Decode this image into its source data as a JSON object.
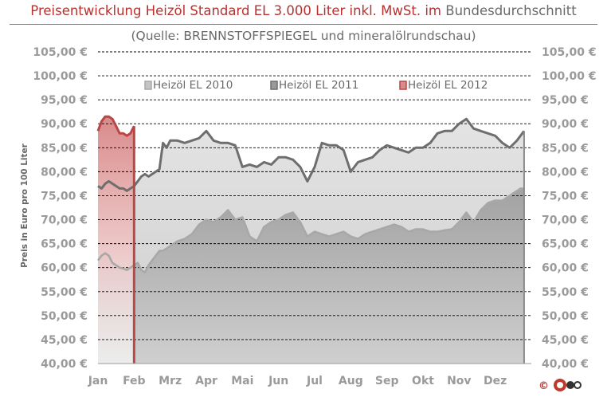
{
  "header": {
    "title_red_1": "Preisentwicklung Heizöl Standard EL 3.000 Liter inkl. MwSt. im",
    "title_gray": " Bundesdurchschnitt",
    "subtitle": "(Quelle: BRENNSTOFFSPIEGEL  und mineralölrundschau)",
    "copyright_symbol": "©"
  },
  "colors": {
    "title_red": "#b8312f",
    "series_2010": "#a8a8a8",
    "series_2011": "#6e6e6e",
    "series_2012": "#b84848",
    "fill_2012": "#d98a8a"
  },
  "chart_data": {
    "type": "area",
    "ylabel": "Preis in Euro pro 100 Liter",
    "ylim": [
      40,
      105
    ],
    "y_step": 5,
    "y_tick_labels": [
      "105,00 €",
      "100,00 €",
      "95,00 €",
      "90,00 €",
      "85,00 €",
      "80,00 €",
      "75,00 €",
      "70,00 €",
      "65,00 €",
      "60,00 €",
      "55,00 €",
      "50,00 €",
      "45,00 €",
      "40,00 €"
    ],
    "categories": [
      "Jan",
      "Feb",
      "Mrz",
      "Apr",
      "Mai",
      "Jun",
      "Jul",
      "Aug",
      "Sep",
      "Okt",
      "Nov",
      "Dez"
    ],
    "grid": true,
    "legend_position": "top",
    "series": [
      {
        "name": "Heizöl EL 2010",
        "x": [
          0,
          0.1,
          0.2,
          0.3,
          0.4,
          0.5,
          0.6,
          0.7,
          0.8,
          0.9,
          1.0,
          1.1,
          1.2,
          1.3,
          1.4,
          1.5,
          1.6,
          1.7,
          1.8,
          1.9,
          2.0,
          2.2,
          2.4,
          2.6,
          2.8,
          3.0,
          3.2,
          3.4,
          3.6,
          3.8,
          4.0,
          4.2,
          4.4,
          4.6,
          4.8,
          5.0,
          5.2,
          5.4,
          5.6,
          5.8,
          6.0,
          6.2,
          6.4,
          6.6,
          6.8,
          7.0,
          7.2,
          7.4,
          7.6,
          7.8,
          8.0,
          8.2,
          8.4,
          8.6,
          8.8,
          9.0,
          9.2,
          9.4,
          9.6,
          9.8,
          10.0,
          10.2,
          10.4,
          10.6,
          10.8,
          11.0,
          11.2,
          11.4,
          11.6,
          11.7,
          11.8
        ],
        "values": [
          61.5,
          62.5,
          63.0,
          62.5,
          61.0,
          60.5,
          60.0,
          59.8,
          59.5,
          60.0,
          60.5,
          61.0,
          59.5,
          59.0,
          60.5,
          61.5,
          62.5,
          63.5,
          63.5,
          64.0,
          64.5,
          65.5,
          66.0,
          67.0,
          69.0,
          70.0,
          69.5,
          70.5,
          72.0,
          70.0,
          70.5,
          66.5,
          65.5,
          68.5,
          69.5,
          70.0,
          71.0,
          71.5,
          69.5,
          66.5,
          67.5,
          67.0,
          66.5,
          67.0,
          67.5,
          66.5,
          66.0,
          67.0,
          67.5,
          68.0,
          68.5,
          69.0,
          68.5,
          67.5,
          68.0,
          68.0,
          67.5,
          67.5,
          67.8,
          68.0,
          69.5,
          71.5,
          69.5,
          72.0,
          73.5,
          74.0,
          74.0,
          75.0,
          76.0,
          76.5,
          76.5
        ]
      },
      {
        "name": "Heizöl EL 2011",
        "x": [
          0,
          0.1,
          0.2,
          0.3,
          0.4,
          0.5,
          0.6,
          0.7,
          0.8,
          0.9,
          1.0,
          1.1,
          1.2,
          1.3,
          1.4,
          1.5,
          1.6,
          1.7,
          1.8,
          1.9,
          2.0,
          2.2,
          2.4,
          2.6,
          2.8,
          3.0,
          3.2,
          3.4,
          3.6,
          3.8,
          4.0,
          4.2,
          4.4,
          4.6,
          4.8,
          5.0,
          5.2,
          5.4,
          5.6,
          5.8,
          6.0,
          6.2,
          6.4,
          6.6,
          6.8,
          7.0,
          7.2,
          7.4,
          7.6,
          7.8,
          8.0,
          8.2,
          8.4,
          8.6,
          8.8,
          9.0,
          9.2,
          9.4,
          9.6,
          9.8,
          10.0,
          10.2,
          10.4,
          10.6,
          10.8,
          11.0,
          11.2,
          11.4,
          11.6,
          11.7,
          11.8
        ],
        "values": [
          77.0,
          76.5,
          77.5,
          78.0,
          77.5,
          77.0,
          76.5,
          76.5,
          76.0,
          76.5,
          77.0,
          78.0,
          79.0,
          79.5,
          79.0,
          79.5,
          80.0,
          80.5,
          86.0,
          85.0,
          86.5,
          86.5,
          86.0,
          86.5,
          87.0,
          88.5,
          86.5,
          86.0,
          86.0,
          85.5,
          81.0,
          81.5,
          81.0,
          82.0,
          81.5,
          83.0,
          83.0,
          82.5,
          81.0,
          78.0,
          81.0,
          86.0,
          85.5,
          85.5,
          84.5,
          80.0,
          82.0,
          82.5,
          83.0,
          84.5,
          85.5,
          85.0,
          84.5,
          84.0,
          85.0,
          85.0,
          86.0,
          88.0,
          88.5,
          88.5,
          90.0,
          91.0,
          89.0,
          88.5,
          88.0,
          87.5,
          86.0,
          85.0,
          86.5,
          87.5,
          88.5
        ]
      },
      {
        "name": "Heizöl EL 2012",
        "x": [
          0,
          0.1,
          0.2,
          0.3,
          0.4,
          0.5,
          0.6,
          0.7,
          0.8,
          0.9,
          1.0
        ],
        "values": [
          88.5,
          90.5,
          91.5,
          91.5,
          91.0,
          89.5,
          88.0,
          88.0,
          87.5,
          88.0,
          89.5
        ]
      }
    ]
  }
}
